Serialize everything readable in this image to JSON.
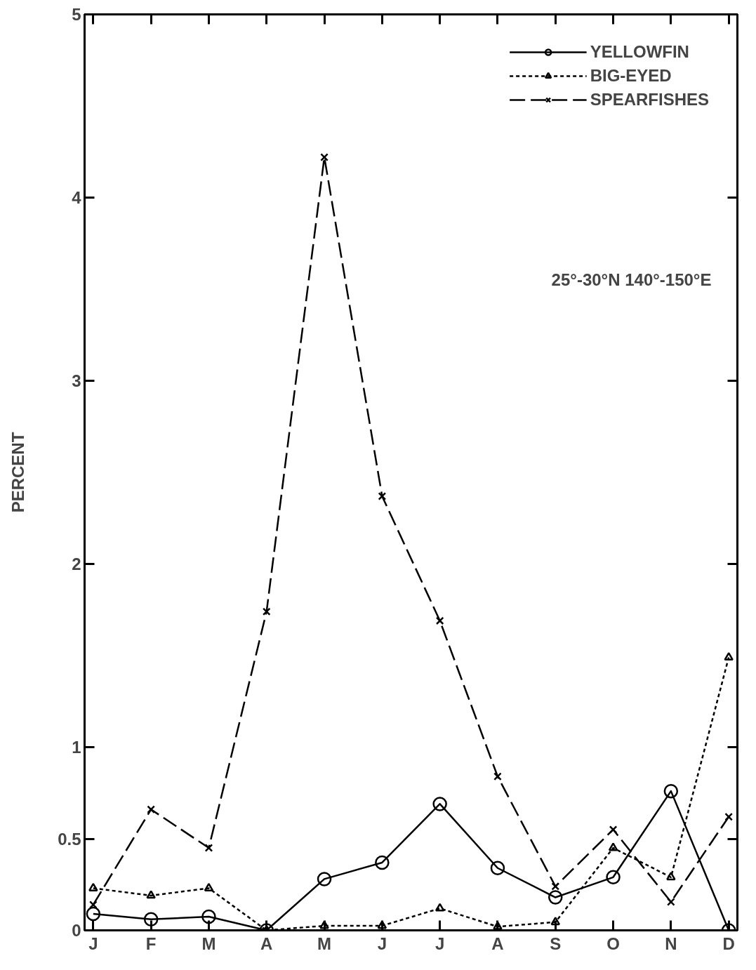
{
  "chart_data": {
    "type": "line",
    "ylabel": "PERCENT",
    "categories": [
      "J",
      "F",
      "M",
      "A",
      "M",
      "J",
      "J",
      "A",
      "S",
      "O",
      "N",
      "D"
    ],
    "ylim": [
      0,
      5
    ],
    "yticks": [
      0,
      0.5,
      1,
      2,
      3,
      4,
      5
    ],
    "legend": "top right",
    "grid": false,
    "annotations": [
      "25°-30°N 140°-150°E"
    ],
    "series": [
      {
        "name": "YELLOWFIN",
        "color": "#000000",
        "marker": "circle",
        "line_style": "solid",
        "values": [
          0.09,
          0.06,
          0.075,
          0,
          0.28,
          0.37,
          0.69,
          0.34,
          0.18,
          0.29,
          0.76,
          0
        ]
      },
      {
        "name": "BIG-EYED",
        "color": "#000000",
        "marker": "triangle",
        "line_style": "dotted",
        "values": [
          0.23,
          0.19,
          0.23,
          0,
          0.025,
          0.025,
          0.12,
          0.02,
          0.045,
          0.45,
          0.29,
          1.49
        ]
      },
      {
        "name": "SPEARFISHES",
        "color": "#000000",
        "marker": "cross",
        "line_style": "dashed",
        "values": [
          0.14,
          0.66,
          0.45,
          1.74,
          4.22,
          2.37,
          1.69,
          0.84,
          0.24,
          0.55,
          0.155,
          0.62
        ]
      }
    ]
  }
}
